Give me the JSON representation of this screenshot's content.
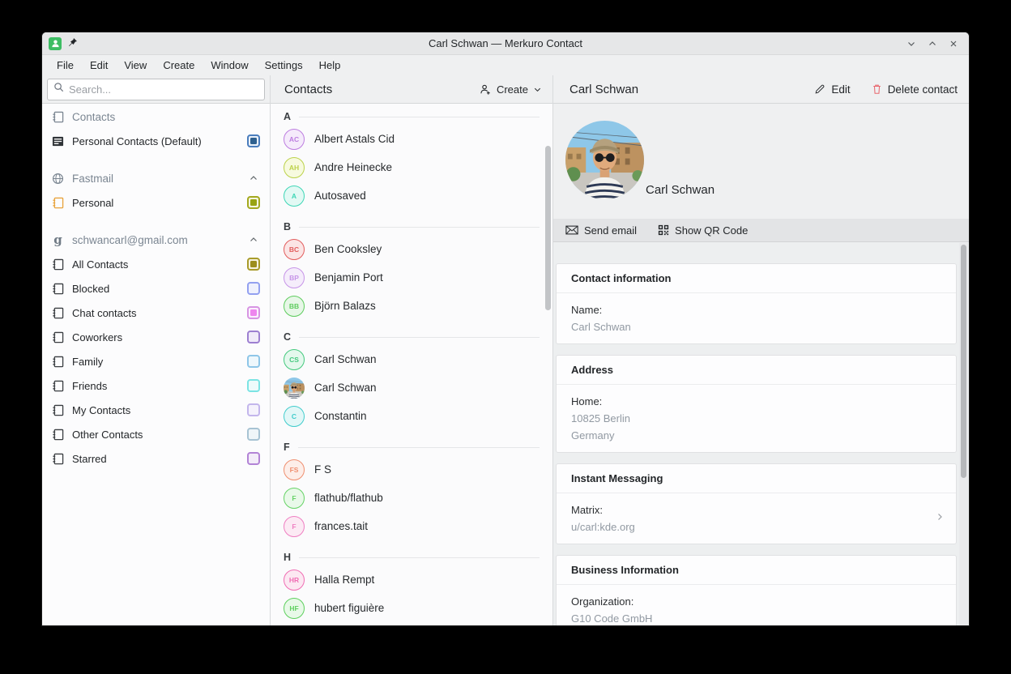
{
  "window": {
    "title": "Carl Schwan — Merkuro Contact"
  },
  "menu": {
    "items": [
      "File",
      "Edit",
      "View",
      "Create",
      "Window",
      "Settings",
      "Help"
    ]
  },
  "sidebar": {
    "search_placeholder": "Search...",
    "groups": [
      {
        "header": {
          "label": "Contacts",
          "icon": "address-book-icon",
          "collapsible": false
        },
        "items": [
          {
            "label": "Personal Contacts (Default)",
            "icon": "contacts-list-icon",
            "checkbox": {
              "checked": true,
              "border": "#4a7dbd",
              "fill": "#e9f0f9",
              "inner": "#2e608f"
            }
          }
        ]
      },
      {
        "header": {
          "label": "Fastmail",
          "icon": "globe-icon",
          "collapsible": true
        },
        "items": [
          {
            "label": "Personal",
            "icon": "address-book-orange-icon",
            "checkbox": {
              "checked": true,
              "border": "#a4a91f",
              "fill": "#f4f5e0",
              "inner": "#98a311"
            }
          }
        ]
      },
      {
        "header": {
          "label": "schwancarl@gmail.com",
          "icon": "google-icon",
          "collapsible": true
        },
        "items": [
          {
            "label": "All Contacts",
            "icon": "address-book-icon",
            "checkbox": {
              "checked": true,
              "border": "#a89b2a",
              "fill": "#f5f2df",
              "inner": "#9c8e1d"
            }
          },
          {
            "label": "Blocked",
            "icon": "address-book-icon",
            "checkbox": {
              "checked": false,
              "border": "#93a0f0",
              "fill": "#eff1fd",
              "inner": null
            }
          },
          {
            "label": "Chat contacts",
            "icon": "address-book-icon",
            "checkbox": {
              "checked": true,
              "border": "#d795e3",
              "fill": "#fbeffd",
              "inner": "#ee86ee"
            }
          },
          {
            "label": "Coworkers",
            "icon": "address-book-icon",
            "checkbox": {
              "checked": false,
              "border": "#9d7fd1",
              "fill": "#f0eaf9",
              "inner": null
            }
          },
          {
            "label": "Family",
            "icon": "address-book-icon",
            "checkbox": {
              "checked": false,
              "border": "#8ec6e8",
              "fill": "#eef7fc",
              "inner": null
            }
          },
          {
            "label": "Friends",
            "icon": "address-book-icon",
            "checkbox": {
              "checked": false,
              "border": "#7ce4e4",
              "fill": "#edfbfb",
              "inner": null
            }
          },
          {
            "label": "My Contacts",
            "icon": "address-book-icon",
            "checkbox": {
              "checked": false,
              "border": "#c3b6ec",
              "fill": "#f5f2fc",
              "inner": null
            }
          },
          {
            "label": "Other Contacts",
            "icon": "address-book-icon",
            "checkbox": {
              "checked": false,
              "border": "#a7c3d3",
              "fill": "#eff5f8",
              "inner": null
            }
          },
          {
            "label": "Starred",
            "icon": "address-book-icon",
            "checkbox": {
              "checked": false,
              "border": "#b283d6",
              "fill": "#f3ecf9",
              "inner": null
            }
          }
        ]
      }
    ]
  },
  "contacts_panel": {
    "title": "Contacts",
    "create_label": "Create",
    "sections": [
      {
        "letter": "A",
        "contacts": [
          {
            "name": "Albert Astals Cid",
            "initials": "AC",
            "color": "#bd7ee0",
            "fill": "#f5ebfb",
            "photo": false
          },
          {
            "name": "Andre Heinecke",
            "initials": "AH",
            "color": "#bcd24a",
            "fill": "#f7fadf",
            "photo": false
          },
          {
            "name": "Autosaved",
            "initials": "A",
            "color": "#3fd6b6",
            "fill": "#e2f9f4",
            "photo": false
          }
        ]
      },
      {
        "letter": "B",
        "contacts": [
          {
            "name": "Ben Cooksley",
            "initials": "BC",
            "color": "#e25d5d",
            "fill": "#fbe5e5",
            "photo": false
          },
          {
            "name": "Benjamin Port",
            "initials": "BP",
            "color": "#c795e8",
            "fill": "#f5edfb",
            "photo": false
          },
          {
            "name": "Björn Balazs",
            "initials": "BB",
            "color": "#5ecc5e",
            "fill": "#e7f7e7",
            "photo": false
          }
        ]
      },
      {
        "letter": "C",
        "contacts": [
          {
            "name": "Carl Schwan",
            "initials": "CS",
            "color": "#44c97e",
            "fill": "#e4f8ed",
            "photo": false
          },
          {
            "name": "Carl Schwan",
            "initials": "",
            "color": "",
            "fill": "",
            "photo": true
          },
          {
            "name": "Constantin",
            "initials": "C",
            "color": "#40cccc",
            "fill": "#e2f7f7",
            "photo": false
          }
        ]
      },
      {
        "letter": "F",
        "contacts": [
          {
            "name": "F S",
            "initials": "FS",
            "color": "#ef8f70",
            "fill": "#fdeee9",
            "photo": false
          },
          {
            "name": "flathub/flathub",
            "initials": "F",
            "color": "#66d366",
            "fill": "#e9f9e9",
            "photo": false
          },
          {
            "name": "frances.tait",
            "initials": "F",
            "color": "#ef7fc2",
            "fill": "#fceaf4",
            "photo": false
          }
        ]
      },
      {
        "letter": "H",
        "contacts": [
          {
            "name": "Halla Rempt",
            "initials": "HR",
            "color": "#f06eb4",
            "fill": "#fce8f2",
            "photo": false
          },
          {
            "name": "hubert figuière",
            "initials": "HF",
            "color": "#5ed05e",
            "fill": "#e8f9e8",
            "photo": false
          }
        ]
      }
    ]
  },
  "detail_panel": {
    "title": "Carl Schwan",
    "edit_label": "Edit",
    "delete_label": "Delete contact",
    "contact_name": "Carl Schwan",
    "toolbar": {
      "send_email_label": "Send email",
      "show_qr_label": "Show QR Code"
    },
    "sections": [
      {
        "title": "Contact information",
        "fields": [
          {
            "label": "Name:",
            "values": [
              "Carl Schwan"
            ],
            "chevron": false
          }
        ]
      },
      {
        "title": "Address",
        "fields": [
          {
            "label": "Home:",
            "values": [
              "10825 Berlin",
              "Germany"
            ],
            "chevron": false
          }
        ]
      },
      {
        "title": "Instant Messaging",
        "fields": [
          {
            "label": "Matrix:",
            "values": [
              "u/carl:kde.org"
            ],
            "chevron": true
          }
        ]
      },
      {
        "title": "Business Information",
        "fields": [
          {
            "label": "Organization:",
            "values": [
              "G10 Code GmbH"
            ],
            "chevron": false
          }
        ]
      }
    ]
  }
}
